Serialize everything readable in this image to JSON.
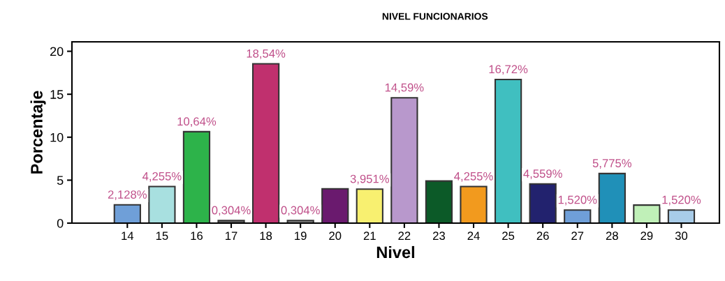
{
  "chart_data": {
    "type": "bar",
    "title": "NIVEL FUNCIONARIOS",
    "xlabel": "Nivel",
    "ylabel": "Porcentaje",
    "categories": [
      "14",
      "15",
      "16",
      "17",
      "18",
      "19",
      "20",
      "21",
      "22",
      "23",
      "24",
      "25",
      "26",
      "27",
      "28",
      "29",
      "30"
    ],
    "values": [
      2.128,
      4.255,
      10.64,
      0.304,
      18.54,
      0.304,
      4,
      3.951,
      14.59,
      4.9,
      4.255,
      16.72,
      4.559,
      1.52,
      5.775,
      2.1,
      1.52
    ],
    "value_labels": [
      "2,128%",
      "4,255%",
      "10,64%",
      "0,304%",
      "18,54%",
      "0,304%",
      null,
      "3,951%",
      "14,59%",
      null,
      "4,255%",
      "16,72%",
      "4,559%",
      "1,520%",
      "5,775%",
      null,
      "1,520%"
    ],
    "colors": [
      "#6f9fd8",
      "#a8e0e0",
      "#2db34a",
      "#606060",
      "#c0306e",
      "#808080",
      "#6a1a6e",
      "#f8f070",
      "#b898cc",
      "#0c5a28",
      "#f29a1e",
      "#40bfc0",
      "#22226e",
      "#6f9fd8",
      "#2090b8",
      "#c0f0b8",
      "#a8cce8"
    ],
    "ylim": [
      0,
      21.1
    ],
    "yticks": [
      0,
      5,
      10,
      15,
      20
    ],
    "grid": false
  }
}
